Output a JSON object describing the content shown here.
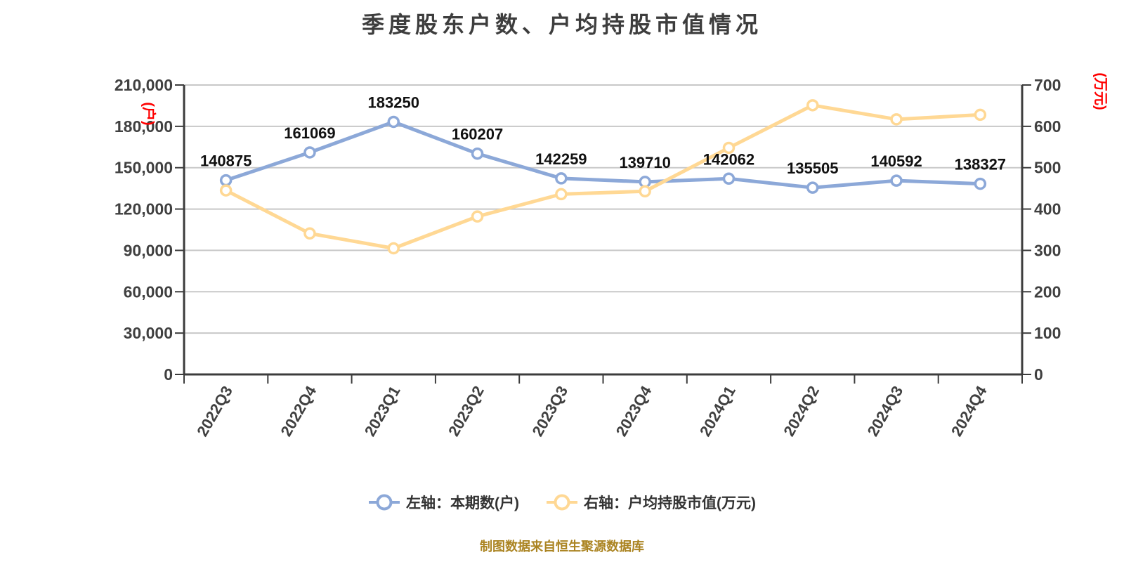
{
  "chart_data": {
    "type": "line",
    "title": "季度股东户数、户均持股市值情况",
    "source_note": "制图数据来自恒生聚源数据库",
    "categories": [
      "2022Q3",
      "2022Q4",
      "2023Q1",
      "2023Q2",
      "2023Q3",
      "2023Q4",
      "2024Q1",
      "2024Q2",
      "2024Q3",
      "2024Q4"
    ],
    "series": [
      {
        "key": "shareholder-count",
        "name": "左轴：本期数(户)",
        "axis": "left",
        "color": "#8CA8D8",
        "show_labels": true,
        "values": [
          140875,
          161069,
          183250,
          160207,
          142259,
          139710,
          142062,
          135505,
          140592,
          138327
        ],
        "labels": [
          "140875",
          "161069",
          "183250",
          "160207",
          "142259",
          "139710",
          "142062",
          "135505",
          "140592",
          "138327"
        ]
      },
      {
        "key": "avg-holding-value",
        "name": "右轴：户均持股市值(万元)",
        "axis": "right",
        "color": "#FFD894",
        "show_labels": false,
        "values": [
          445,
          341,
          305,
          382,
          436,
          443,
          548,
          651,
          617,
          628
        ],
        "labels": []
      }
    ],
    "left_axis": {
      "min": 0,
      "max": 210000,
      "step": 30000,
      "tick_labels": [
        "0",
        "30,000",
        "60,000",
        "90,000",
        "120,000",
        "150,000",
        "180,000",
        "210,000"
      ],
      "unit_label": "(户)"
    },
    "right_axis": {
      "min": 0,
      "max": 700,
      "step": 100,
      "tick_labels": [
        "0",
        "100",
        "200",
        "300",
        "400",
        "500",
        "600",
        "700"
      ],
      "unit_label": "(万元)"
    },
    "grid": true,
    "legend_position": "bottom"
  },
  "colors": {
    "series_blue": "#8CA8D8",
    "series_yellow": "#FFD894",
    "axis_unit_red": "#FF0000",
    "grid": "#C8C8C8",
    "axis": "#3C3C3C",
    "tick_text": "#404040",
    "x_label_text": "#404040",
    "data_label": "#111111",
    "title_text": "#3D3D3D",
    "legend_text": "#333333",
    "source_gold": "#AB8422",
    "marker_fill": "#FFFFFF"
  }
}
